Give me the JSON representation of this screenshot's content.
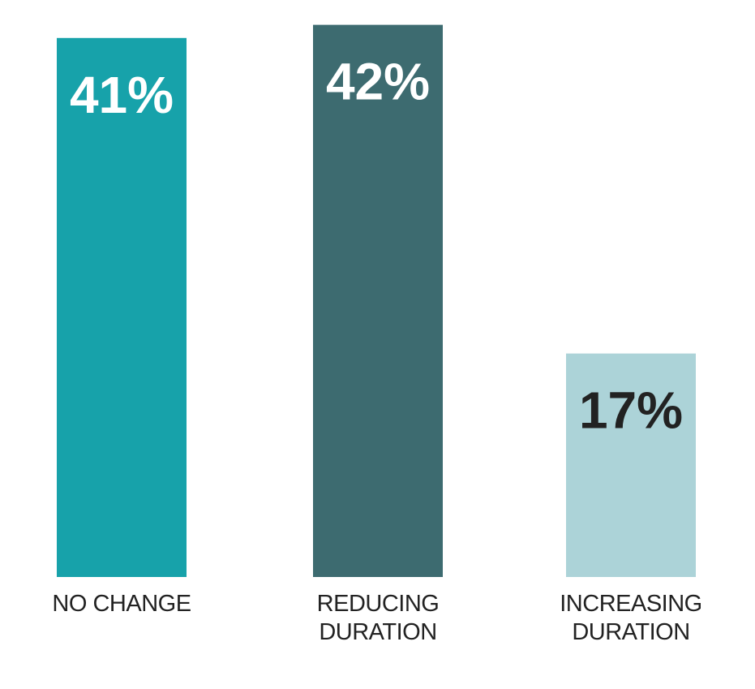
{
  "chart_data": {
    "type": "bar",
    "categories": [
      "NO CHANGE",
      "REDUCING DURATION",
      "INCREASING DURATION"
    ],
    "values": [
      41,
      42,
      17
    ],
    "value_labels": [
      "41%",
      "42%",
      "17%"
    ],
    "colors": [
      "#17a2aa",
      "#3d6b70",
      "#acd3d8"
    ],
    "value_label_colors": [
      "#ffffff",
      "#ffffff",
      "#222222"
    ]
  }
}
